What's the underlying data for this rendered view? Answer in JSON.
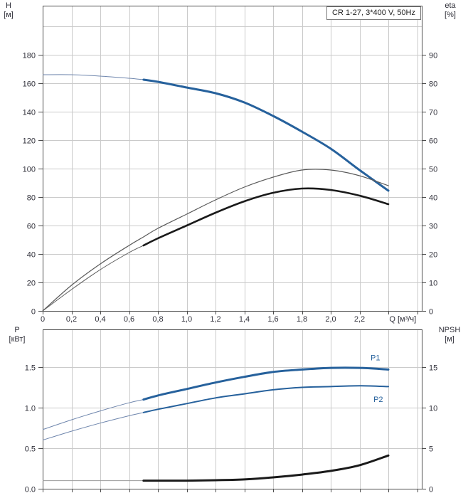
{
  "title_box": {
    "label": "CR 1-27, 3*400 V, 50Hz"
  },
  "axis_titles": {
    "h_line1": "H",
    "h_line2": "[м]",
    "eta_line1": "eta",
    "eta_line2": "[%]",
    "p_line1": "P",
    "p_line2": "[кВт]",
    "npsh_line1": "NPSH",
    "npsh_line2": "[м]"
  },
  "colors": {
    "curve_blue": "#26619c",
    "curve_blue_thin": "#6f86ad",
    "curve_black": "#1a1a1a",
    "curve_black_thin": "#5a5a5a",
    "npsh_thin": "#9a9a9a",
    "grid": "#cacaca",
    "axis": "#4d4d4d",
    "tick_text": "#30303a"
  },
  "chart_data": [
    {
      "type": "line",
      "title": "CR 1-27, 3*400 V, 50Hz",
      "xlabel": "Q [м³/ч]",
      "x_axis": {
        "min": 0,
        "max": 2.632,
        "grid_step": 0.2,
        "ticks": [
          [
            "0",
            0
          ],
          [
            "0,2",
            0.2
          ],
          [
            "0,4",
            0.4
          ],
          [
            "0,6",
            0.6
          ],
          [
            "0,8",
            0.8
          ],
          [
            "1,0",
            1.0
          ],
          [
            "1,2",
            1.2
          ],
          [
            "1,4",
            1.4
          ],
          [
            "1,6",
            1.6
          ],
          [
            "1,8",
            1.8
          ],
          [
            "2,0",
            2.0
          ],
          [
            "2,2",
            2.2
          ]
        ]
      },
      "left_axis": {
        "name": "H",
        "unit": "[м]",
        "min": 0,
        "max": 214.5,
        "grid_step": 20,
        "ticks": [
          [
            "0",
            0
          ],
          [
            "20",
            20
          ],
          [
            "40",
            40
          ],
          [
            "60",
            60
          ],
          [
            "80",
            80
          ],
          [
            "100",
            100
          ],
          [
            "120",
            120
          ],
          [
            "140",
            140
          ],
          [
            "160",
            160
          ],
          [
            "180",
            180
          ]
        ]
      },
      "right_axis": {
        "name": "eta",
        "unit": "[%]",
        "min": 0,
        "max": 107.25,
        "ticks": [
          [
            "0",
            0
          ],
          [
            "10",
            10
          ],
          [
            "20",
            20
          ],
          [
            "30",
            30
          ],
          [
            "40",
            40
          ],
          [
            "50",
            50
          ],
          [
            "60",
            60
          ],
          [
            "70",
            70
          ],
          [
            "80",
            80
          ],
          [
            "90",
            90
          ]
        ]
      },
      "series": [
        {
          "name": "H",
          "axis": "left",
          "thick_from": 0.7,
          "width": 3,
          "color": "curve_blue",
          "thin_color": "curve_blue_thin",
          "points": [
            [
              0,
              166
            ],
            [
              0.2,
              166
            ],
            [
              0.4,
              165
            ],
            [
              0.6,
              163.5
            ],
            [
              0.7,
              162.5
            ],
            [
              0.8,
              161
            ],
            [
              1,
              157
            ],
            [
              1.2,
              153
            ],
            [
              1.4,
              146.5
            ],
            [
              1.6,
              137
            ],
            [
              1.8,
              126
            ],
            [
              2,
              114
            ],
            [
              2.2,
              99
            ],
            [
              2.4,
              84.5
            ]
          ]
        },
        {
          "name": "eta-max",
          "axis": "right",
          "thick_from": null,
          "width": 1.2,
          "color": "curve_black_thin",
          "thin_color": "curve_black_thin",
          "points": [
            [
              0,
              0
            ],
            [
              0.2,
              9
            ],
            [
              0.4,
              16.5
            ],
            [
              0.6,
              23
            ],
            [
              0.7,
              26
            ],
            [
              0.8,
              29
            ],
            [
              1,
              34
            ],
            [
              1.2,
              39
            ],
            [
              1.4,
              43.5
            ],
            [
              1.6,
              47
            ],
            [
              1.8,
              49.5
            ],
            [
              2,
              49.5
            ],
            [
              2.2,
              47.5
            ],
            [
              2.4,
              44
            ]
          ]
        },
        {
          "name": "eta",
          "axis": "right",
          "thick_from": 0.7,
          "width": 2.6,
          "color": "curve_black",
          "thin_color": "curve_black_thin",
          "points": [
            [
              0,
              0
            ],
            [
              0.2,
              7.5
            ],
            [
              0.4,
              14.5
            ],
            [
              0.6,
              20.5
            ],
            [
              0.7,
              23
            ],
            [
              0.8,
              25.5
            ],
            [
              1,
              30
            ],
            [
              1.2,
              34.5
            ],
            [
              1.4,
              38.5
            ],
            [
              1.6,
              41.5
            ],
            [
              1.8,
              43
            ],
            [
              2,
              42.5
            ],
            [
              2.2,
              40.5
            ],
            [
              2.4,
              37.5
            ]
          ]
        }
      ]
    },
    {
      "type": "line",
      "title": "",
      "xlabel": "",
      "x_axis": {
        "min": 0,
        "max": 2.632,
        "grid_step": 0.2,
        "ticks": []
      },
      "left_axis": {
        "name": "P",
        "unit": "[кВт]",
        "min": 0,
        "max": 1.965,
        "grid_step": 0.5,
        "ticks": [
          [
            "0.0",
            0
          ],
          [
            "0.5",
            0.5
          ],
          [
            "1.0",
            1
          ],
          [
            "1.5",
            1.5
          ]
        ]
      },
      "right_axis": {
        "name": "NPSH",
        "unit": "[м]",
        "min": 0,
        "max": 19.65,
        "ticks": [
          [
            "0",
            0
          ],
          [
            "5",
            5
          ],
          [
            "10",
            10
          ],
          [
            "15",
            15
          ]
        ]
      },
      "series": [
        {
          "name": "P1",
          "axis": "left",
          "label": "P1",
          "label_at": [
            2.31,
            1.585
          ],
          "thick_from": 0.7,
          "width": 3,
          "color": "curve_blue",
          "thin_color": "curve_blue_thin",
          "points": [
            [
              0,
              0.73
            ],
            [
              0.2,
              0.85
            ],
            [
              0.4,
              0.96
            ],
            [
              0.6,
              1.06
            ],
            [
              0.7,
              1.1
            ],
            [
              0.8,
              1.15
            ],
            [
              1,
              1.23
            ],
            [
              1.2,
              1.31
            ],
            [
              1.4,
              1.38
            ],
            [
              1.6,
              1.44
            ],
            [
              1.8,
              1.47
            ],
            [
              2,
              1.49
            ],
            [
              2.2,
              1.49
            ],
            [
              2.4,
              1.47
            ]
          ]
        },
        {
          "name": "P2",
          "axis": "left",
          "label": "P2",
          "label_at": [
            2.33,
            1.07
          ],
          "thick_from": 0.7,
          "width": 2,
          "color": "curve_blue",
          "thin_color": "curve_blue_thin",
          "points": [
            [
              0,
              0.6
            ],
            [
              0.2,
              0.71
            ],
            [
              0.4,
              0.81
            ],
            [
              0.6,
              0.9
            ],
            [
              0.7,
              0.94
            ],
            [
              0.8,
              0.98
            ],
            [
              1,
              1.05
            ],
            [
              1.2,
              1.12
            ],
            [
              1.4,
              1.17
            ],
            [
              1.6,
              1.22
            ],
            [
              1.8,
              1.25
            ],
            [
              2,
              1.26
            ],
            [
              2.2,
              1.27
            ],
            [
              2.4,
              1.26
            ]
          ]
        },
        {
          "name": "NPSH",
          "axis": "right",
          "thick_from": 0.7,
          "width": 3,
          "color": "curve_black",
          "thin_color": "npsh_thin",
          "points": [
            [
              0,
              1
            ],
            [
              0.2,
              1
            ],
            [
              0.4,
              1
            ],
            [
              0.6,
              1
            ],
            [
              0.7,
              1
            ],
            [
              0.8,
              1
            ],
            [
              1,
              1
            ],
            [
              1.2,
              1.05
            ],
            [
              1.4,
              1.15
            ],
            [
              1.6,
              1.4
            ],
            [
              1.8,
              1.75
            ],
            [
              2,
              2.2
            ],
            [
              2.2,
              2.9
            ],
            [
              2.4,
              4.1
            ]
          ]
        }
      ]
    }
  ]
}
